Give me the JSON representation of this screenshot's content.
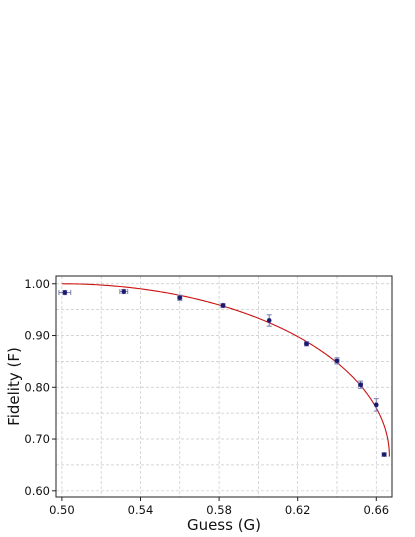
{
  "chart_data": {
    "type": "scatter",
    "xlabel": "Guess (G)",
    "ylabel": "Fidelity (F)",
    "xlim": [
      0.497,
      0.668
    ],
    "ylim": [
      0.588,
      1.015
    ],
    "xticks": [
      0.5,
      0.54,
      0.58,
      0.62,
      0.66
    ],
    "xtick_labels": [
      "0.50",
      "0.54",
      "0.58",
      "0.62",
      "0.66"
    ],
    "yticks": [
      0.6,
      0.7,
      0.8,
      0.9,
      1.0
    ],
    "ytick_labels": [
      "0.60",
      "0.70",
      "0.80",
      "0.90",
      "1.00"
    ],
    "grid": true,
    "series": [
      {
        "kind": "points_with_error_bars",
        "color": "#1a1a6e",
        "error_color": "#7a7ab0",
        "points": [
          {
            "x": 0.5015,
            "y": 0.983,
            "xerr": 0.003,
            "yerr": 0.004
          },
          {
            "x": 0.5315,
            "y": 0.985,
            "xerr": 0.002,
            "yerr": 0.004
          },
          {
            "x": 0.56,
            "y": 0.973,
            "xerr": 0.001,
            "yerr": 0.005
          },
          {
            "x": 0.582,
            "y": 0.958,
            "xerr": 0.001,
            "yerr": 0.004
          },
          {
            "x": 0.6055,
            "y": 0.929,
            "xerr": 0.0005,
            "yerr": 0.011
          },
          {
            "x": 0.6245,
            "y": 0.884,
            "xerr": 0.001,
            "yerr": 0.004
          },
          {
            "x": 0.64,
            "y": 0.851,
            "xerr": 0.001,
            "yerr": 0.006
          },
          {
            "x": 0.652,
            "y": 0.805,
            "xerr": 0.001,
            "yerr": 0.007
          },
          {
            "x": 0.66,
            "y": 0.766,
            "xerr": 0.0005,
            "yerr": 0.012
          },
          {
            "x": 0.664,
            "y": 0.67,
            "xerr": 0.001,
            "yerr": 0.003
          }
        ]
      },
      {
        "kind": "curve",
        "color": "#cc1111",
        "x_start": 0.5,
        "x_end": 0.6667
      }
    ]
  }
}
